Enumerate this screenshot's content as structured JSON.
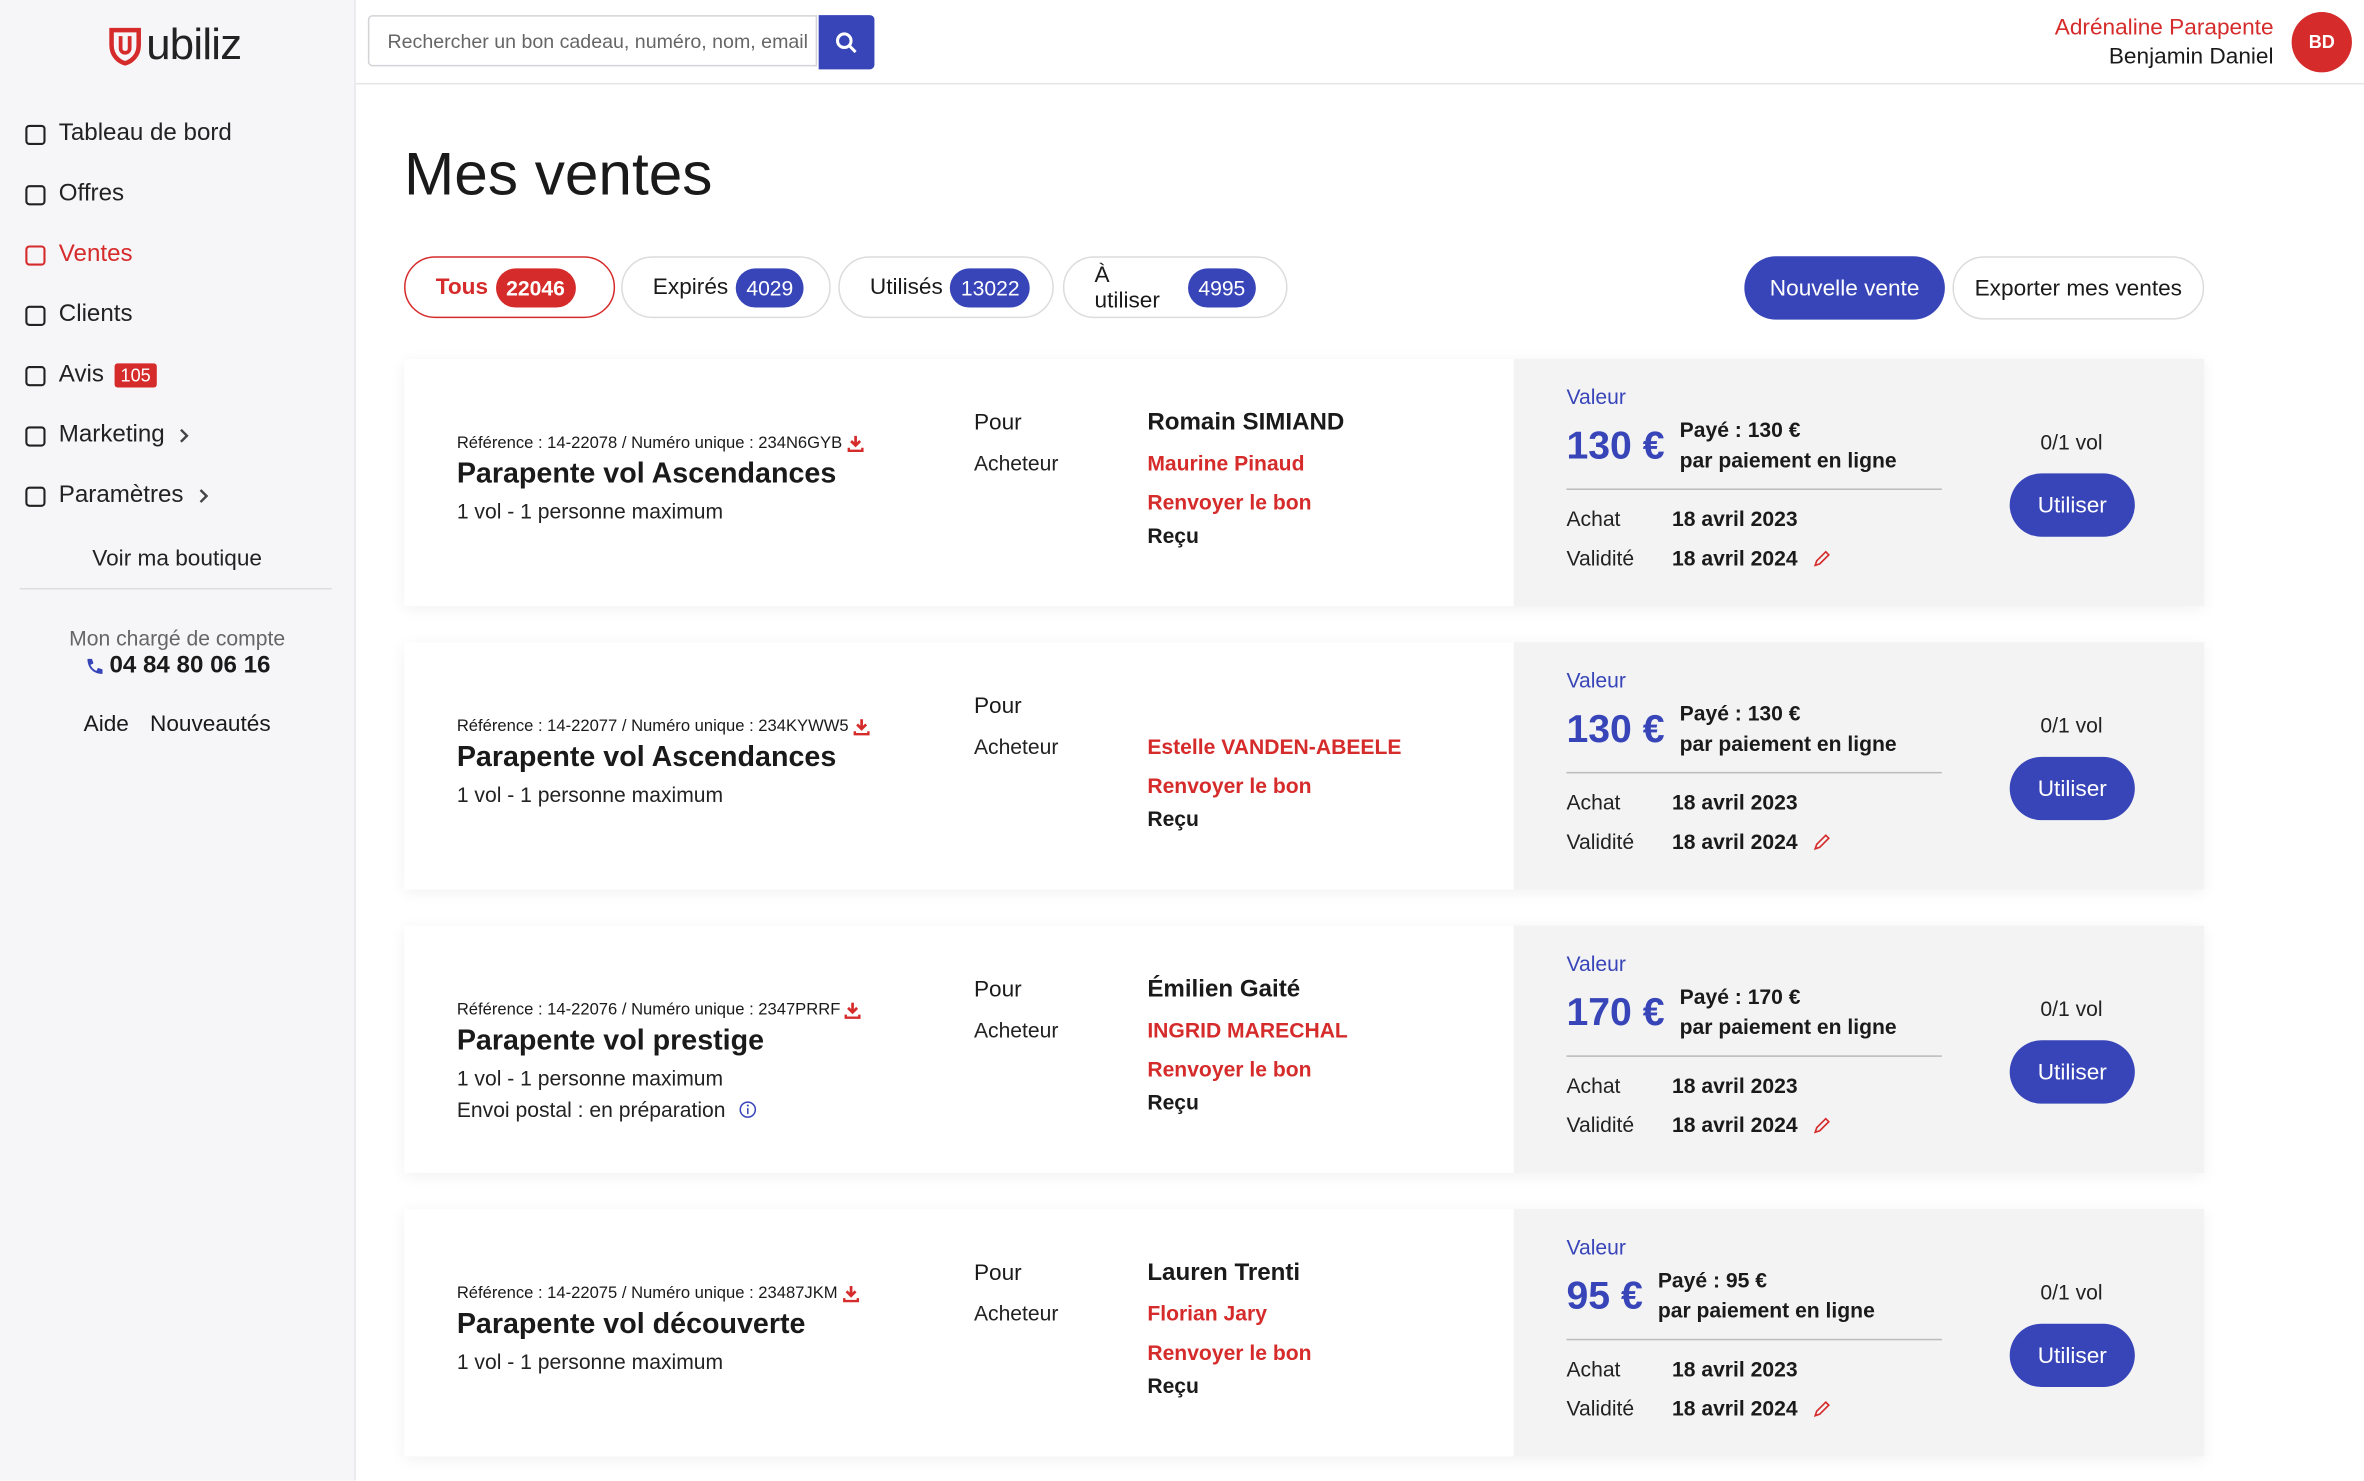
{
  "brand": "ubiliz",
  "search": {
    "placeholder": "Rechercher un bon cadeau, numéro, nom, email"
  },
  "user": {
    "company": "Adrénaline Parapente",
    "name": "Benjamin Daniel",
    "initials": "BD"
  },
  "nav": [
    {
      "label": "Tableau de bord"
    },
    {
      "label": "Offres"
    },
    {
      "label": "Ventes",
      "active": true
    },
    {
      "label": "Clients"
    },
    {
      "label": "Avis",
      "badge": 105
    },
    {
      "label": "Marketing",
      "submenu": true
    },
    {
      "label": "Paramètres",
      "submenu": true
    }
  ],
  "shop_link": "Voir ma boutique",
  "account_manager": {
    "label": "Mon chargé de compte",
    "phone": "04 84 80 06 16"
  },
  "footer_links": [
    "Aide",
    "Nouveautés"
  ],
  "page_title": "Mes ventes",
  "filters": [
    {
      "label": "Tous",
      "count": 22046,
      "active": true
    },
    {
      "label": "Expirés",
      "count": 4029
    },
    {
      "label": "Utilisés",
      "count": 13022
    },
    {
      "label": "À utiliser",
      "count": 4995
    }
  ],
  "actions": [
    "Nouvelle vente",
    "Exporter mes ventes"
  ],
  "sales": [
    {
      "reference": "Référence : 14-22078 / Numéro unique : 234N6GYB",
      "title": "Parapente vol Ascendances",
      "description": [
        "1 vol - 1 personne maximum"
      ],
      "for_label": "Pour",
      "buyer_label": "Acheteur",
      "recipient": "Romain SIMIAND",
      "buyer": "Maurine Pinaud",
      "resend": "Renvoyer le bon",
      "receipt": "Reçu",
      "value_label": "Valeur",
      "value": "130 €",
      "paid": "Payé : 130 €",
      "payment_method": "par paiement en ligne",
      "purchase_label": "Achat",
      "purchase_date": "18 avril 2023",
      "validity_label": "Validité",
      "validity_date": "18 avril 2024",
      "usage": "0/1 vol",
      "use_button": "Utiliser"
    },
    {
      "reference": "Référence : 14-22077 / Numéro unique : 234KYWW5",
      "title": "Parapente vol Ascendances",
      "description": [
        "1 vol - 1 personne maximum"
      ],
      "for_label": "Pour",
      "buyer_label": "Acheteur",
      "recipient": null,
      "buyer": "Estelle VANDEN-ABEELE",
      "resend": "Renvoyer le bon",
      "receipt": "Reçu",
      "value_label": "Valeur",
      "value": "130 €",
      "paid": "Payé : 130 €",
      "payment_method": "par paiement en ligne",
      "purchase_label": "Achat",
      "purchase_date": "18 avril 2023",
      "validity_label": "Validité",
      "validity_date": "18 avril 2024",
      "usage": "0/1 vol",
      "use_button": "Utiliser"
    },
    {
      "reference": "Référence : 14-22076 / Numéro unique : 2347PRRF",
      "title": "Parapente vol prestige",
      "description": [
        "1 vol - 1 personne maximum",
        "Envoi postal : en préparation"
      ],
      "for_label": "Pour",
      "buyer_label": "Acheteur",
      "recipient": "Émilien Gaité",
      "buyer": "INGRID MARECHAL",
      "resend": "Renvoyer le bon",
      "receipt": "Reçu",
      "value_label": "Valeur",
      "value": "170 €",
      "paid": "Payé : 170 €",
      "payment_method": "par paiement en ligne",
      "purchase_label": "Achat",
      "purchase_date": "18 avril 2023",
      "validity_label": "Validité",
      "validity_date": "18 avril 2024",
      "usage": "0/1 vol",
      "use_button": "Utiliser"
    },
    {
      "reference": "Référence : 14-22075 / Numéro unique : 23487JKM",
      "title": "Parapente vol découverte",
      "description": [
        "1 vol - 1 personne maximum"
      ],
      "for_label": "Pour",
      "buyer_label": "Acheteur",
      "recipient": "Lauren Trenti",
      "buyer": "Florian Jary",
      "resend": "Renvoyer le bon",
      "receipt": "Reçu",
      "value_label": "Valeur",
      "value": "95 €",
      "paid": "Payé : 95 €",
      "payment_method": "par paiement en ligne",
      "purchase_label": "Achat",
      "purchase_date": "18 avril 2023",
      "validity_label": "Validité",
      "validity_date": "18 avril 2024",
      "usage": "0/1 vol",
      "use_button": "Utiliser"
    }
  ]
}
